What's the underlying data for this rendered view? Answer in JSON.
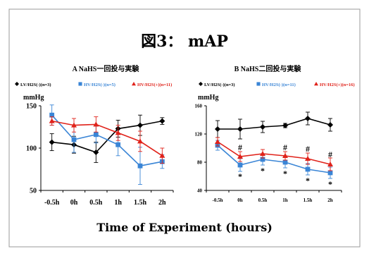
{
  "figure": {
    "title": "図3： mAP",
    "xlabel": "Time of Experiment (hours)"
  },
  "colors": {
    "black": "#000000",
    "blue": "#3a85d6",
    "red": "#e0221a"
  },
  "chart_data": [
    {
      "type": "line",
      "title": "A NaHS一回投与実験",
      "unit": "mmHg",
      "categories": [
        "-0.5h",
        "0h",
        "0.5h",
        "1h",
        "1.5h",
        "2h"
      ],
      "ylim": [
        50,
        150
      ],
      "yticks": [
        "150",
        "100",
        "50"
      ],
      "grid": false,
      "series": [
        {
          "name": "LV/H2S(-)(n=3)",
          "marker": "◆",
          "color": "#000000",
          "values": [
            107,
            104,
            95,
            123,
            127,
            132
          ],
          "err": [
            10,
            10,
            12,
            10,
            12,
            4
          ]
        },
        {
          "name": "HV/H2S(-)(n=5)",
          "marker": "■",
          "color": "#3a85d6",
          "values": [
            139,
            110,
            116,
            104,
            79,
            84
          ],
          "err": [
            12,
            15,
            10,
            13,
            22,
            8
          ]
        },
        {
          "name": "HV/H2S(+)(n=11)",
          "marker": "▲",
          "color": "#e0221a",
          "values": [
            132,
            127,
            128,
            118,
            108,
            91
          ],
          "err": [
            5,
            8,
            9,
            9,
            12,
            9
          ]
        }
      ],
      "annotations": []
    },
    {
      "type": "line",
      "title": "B NaHS二回投与実験",
      "unit": "mmHg",
      "categories": [
        "-0.5h",
        "0h",
        "0.5h",
        "1h",
        "1.5h",
        "2h"
      ],
      "ylim": [
        40,
        160
      ],
      "yticks": [
        "160",
        "120",
        "80",
        "40"
      ],
      "grid": false,
      "series": [
        {
          "name": "LV/H2S(-)(n=3)",
          "marker": "◆",
          "color": "#000000",
          "values": [
            127,
            127,
            130,
            132,
            142,
            133
          ],
          "err": [
            12,
            14,
            8,
            3,
            9,
            9
          ]
        },
        {
          "name": "HV/H2S(-)(n=11)",
          "marker": "■",
          "color": "#3a85d6",
          "values": [
            104,
            76,
            84,
            80,
            70,
            65
          ],
          "err": [
            7,
            9,
            8,
            8,
            8,
            8
          ]
        },
        {
          "name": "HV/H2S(+)(n=16)",
          "marker": "▲",
          "color": "#e0221a",
          "values": [
            109,
            88,
            92,
            89,
            85,
            77
          ],
          "err": [
            6,
            7,
            6,
            6,
            8,
            9
          ]
        }
      ],
      "annotations": [
        {
          "text": "#",
          "x": "0h",
          "y": 101
        },
        {
          "text": "#",
          "x": "1h",
          "y": 101
        },
        {
          "text": "#",
          "x": "1.5h",
          "y": 99
        },
        {
          "text": "#",
          "x": "2h",
          "y": 91
        },
        {
          "text": "*",
          "x": "0h",
          "y": 60
        },
        {
          "text": "*",
          "x": "0.5h",
          "y": 68
        },
        {
          "text": "*",
          "x": "1h",
          "y": 64
        },
        {
          "text": "*",
          "x": "1.5h",
          "y": 54
        },
        {
          "text": "*",
          "x": "2h",
          "y": 49
        }
      ]
    }
  ]
}
